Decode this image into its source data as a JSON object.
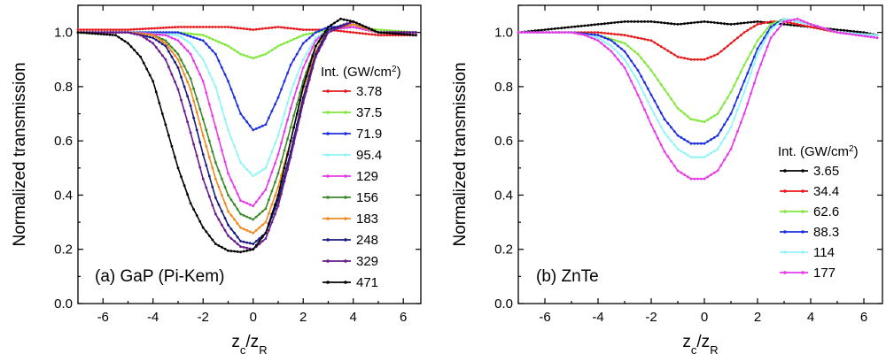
{
  "chart_data": [
    {
      "type": "line",
      "annotation": "(a) GaP (Pi-Kem)",
      "xlabel": "z_c/z_R",
      "ylabel": "Normalized transmission",
      "xlim": [
        -7,
        6.7
      ],
      "ylim": [
        0,
        1.1
      ],
      "xticks": [
        -6,
        -4,
        -2,
        0,
        2,
        4,
        6
      ],
      "yticks": [
        0.0,
        0.2,
        0.4,
        0.6,
        0.8,
        1.0
      ],
      "legend_title": "Int. (GW/cm2)",
      "legend_position": "right",
      "series": [
        {
          "name": "3.78",
          "color": "#e8191c",
          "x": [
            -7,
            -5,
            -3,
            -2,
            -1,
            0,
            1,
            2,
            3,
            4,
            5,
            6.5
          ],
          "y": [
            1.01,
            1.01,
            1.02,
            1.02,
            1.02,
            1.01,
            1.02,
            1.01,
            1.01,
            1.0,
            0.99,
            0.99
          ]
        },
        {
          "name": "37.5",
          "color": "#7fe83a",
          "x": [
            -7,
            -5,
            -3,
            -2,
            -1,
            -0.5,
            0,
            0.5,
            1,
            2,
            3,
            4,
            5,
            6.5
          ],
          "y": [
            1.0,
            1.0,
            1.0,
            0.99,
            0.95,
            0.92,
            0.905,
            0.92,
            0.95,
            0.99,
            1.01,
            1.02,
            1.01,
            1.0
          ]
        },
        {
          "name": "71.9",
          "color": "#1c2fe0",
          "x": [
            -7,
            -5,
            -3,
            -2,
            -1.5,
            -1,
            -0.5,
            0,
            0.5,
            1,
            1.5,
            2,
            2.5,
            3,
            4,
            5,
            6.5
          ],
          "y": [
            1.0,
            1.0,
            1.0,
            0.97,
            0.92,
            0.82,
            0.7,
            0.64,
            0.66,
            0.76,
            0.88,
            0.96,
            1.0,
            1.02,
            1.02,
            1.0,
            1.0
          ]
        },
        {
          "name": "95.4",
          "color": "#8ff5f7",
          "x": [
            -7,
            -5,
            -3,
            -2.5,
            -2,
            -1.5,
            -1,
            -0.5,
            0,
            0.5,
            1,
            1.5,
            2,
            2.5,
            3,
            4,
            5,
            6.5
          ],
          "y": [
            1.0,
            1.0,
            0.99,
            0.96,
            0.9,
            0.8,
            0.64,
            0.52,
            0.47,
            0.5,
            0.62,
            0.78,
            0.9,
            0.98,
            1.01,
            1.02,
            1.0,
            1.0
          ]
        },
        {
          "name": "129",
          "color": "#e838e8",
          "x": [
            -7,
            -5,
            -3.5,
            -3,
            -2.5,
            -2,
            -1.5,
            -1,
            -0.5,
            0,
            0.5,
            1,
            1.5,
            2,
            2.5,
            3,
            4,
            5,
            6.5
          ],
          "y": [
            1.0,
            1.0,
            0.99,
            0.97,
            0.92,
            0.82,
            0.65,
            0.48,
            0.38,
            0.36,
            0.42,
            0.55,
            0.72,
            0.87,
            0.97,
            1.01,
            1.02,
            1.0,
            1.0
          ]
        },
        {
          "name": "156",
          "color": "#3a8a2a",
          "x": [
            -7,
            -5,
            -4,
            -3.5,
            -3,
            -2.5,
            -2,
            -1.5,
            -1,
            -0.5,
            0,
            0.5,
            1,
            1.5,
            2,
            2.5,
            3,
            4,
            5,
            6.5
          ],
          "y": [
            1.0,
            1.0,
            0.99,
            0.97,
            0.92,
            0.83,
            0.68,
            0.52,
            0.4,
            0.33,
            0.31,
            0.35,
            0.48,
            0.65,
            0.82,
            0.95,
            1.01,
            1.03,
            1.0,
            1.0
          ]
        },
        {
          "name": "183",
          "color": "#f08a1f",
          "x": [
            -7,
            -5,
            -4,
            -3.5,
            -3,
            -2.5,
            -2,
            -1.5,
            -1,
            -0.5,
            0,
            0.5,
            1,
            1.5,
            2,
            2.5,
            3,
            4,
            5,
            6.5
          ],
          "y": [
            1.0,
            1.0,
            0.99,
            0.96,
            0.9,
            0.79,
            0.62,
            0.46,
            0.34,
            0.28,
            0.26,
            0.3,
            0.43,
            0.6,
            0.79,
            0.93,
            1.01,
            1.03,
            1.0,
            1.0
          ]
        },
        {
          "name": "248",
          "color": "#1a1a80",
          "x": [
            -7,
            -5,
            -4,
            -3.5,
            -3,
            -2.5,
            -2,
            -1.5,
            -1,
            -0.5,
            0,
            0.5,
            1,
            1.5,
            2,
            2.5,
            3,
            4,
            5,
            6.5
          ],
          "y": [
            1.0,
            1.0,
            0.98,
            0.95,
            0.87,
            0.73,
            0.55,
            0.39,
            0.29,
            0.23,
            0.22,
            0.26,
            0.38,
            0.56,
            0.76,
            0.92,
            1.01,
            1.04,
            1.0,
            1.0
          ]
        },
        {
          "name": "329",
          "color": "#6a1a8a",
          "x": [
            -7,
            -5,
            -4.5,
            -4,
            -3.5,
            -3,
            -2.5,
            -2,
            -1.5,
            -1,
            -0.5,
            0,
            0.5,
            1,
            1.5,
            2,
            2.5,
            3,
            4,
            5,
            6.5
          ],
          "y": [
            1.0,
            1.0,
            0.99,
            0.96,
            0.9,
            0.79,
            0.63,
            0.46,
            0.33,
            0.25,
            0.21,
            0.2,
            0.24,
            0.36,
            0.54,
            0.74,
            0.91,
            1.0,
            1.04,
            1.0,
            1.0
          ]
        },
        {
          "name": "471",
          "color": "#000000",
          "x": [
            -7,
            -5.5,
            -5,
            -4.5,
            -4,
            -3.5,
            -3,
            -2.5,
            -2,
            -1.5,
            -1,
            -0.5,
            0,
            0.5,
            1,
            1.5,
            2,
            2.5,
            3,
            3.5,
            4,
            5,
            6.5
          ],
          "y": [
            1.0,
            0.99,
            0.96,
            0.91,
            0.82,
            0.66,
            0.5,
            0.37,
            0.28,
            0.22,
            0.195,
            0.19,
            0.2,
            0.26,
            0.4,
            0.6,
            0.8,
            0.95,
            1.02,
            1.05,
            1.04,
            1.0,
            0.99
          ]
        }
      ]
    },
    {
      "type": "line",
      "annotation": "(b) ZnTe",
      "xlabel": "z_c/z_R",
      "ylabel": "Normalized transmission",
      "xlim": [
        -7,
        6.7
      ],
      "ylim": [
        0,
        1.1
      ],
      "xticks": [
        -6,
        -4,
        -2,
        0,
        2,
        4,
        6
      ],
      "yticks": [
        0.0,
        0.2,
        0.4,
        0.6,
        0.8,
        1.0
      ],
      "legend_title": "Int. (GW/cm2)",
      "legend_position": "bottom-right",
      "series": [
        {
          "name": "3.65",
          "color": "#000000",
          "x": [
            -7,
            -6,
            -5,
            -4,
            -3,
            -2,
            -1,
            0,
            1,
            2,
            3,
            4,
            5,
            6,
            6.5
          ],
          "y": [
            1.0,
            1.01,
            1.02,
            1.03,
            1.04,
            1.04,
            1.03,
            1.04,
            1.03,
            1.04,
            1.03,
            1.02,
            1.01,
            1.0,
            0.99
          ]
        },
        {
          "name": "34.4",
          "color": "#e8191c",
          "x": [
            -7,
            -5,
            -4,
            -3,
            -2,
            -1.5,
            -1,
            -0.5,
            0,
            0.5,
            1,
            1.5,
            2,
            2.5,
            3,
            4,
            5,
            6.5
          ],
          "y": [
            1.0,
            1.0,
            1.0,
            0.99,
            0.97,
            0.94,
            0.91,
            0.9,
            0.9,
            0.92,
            0.96,
            1.0,
            1.03,
            1.04,
            1.04,
            1.02,
            1.0,
            0.99
          ]
        },
        {
          "name": "62.6",
          "color": "#7fe83a",
          "x": [
            -7,
            -5,
            -4,
            -3,
            -2.5,
            -2,
            -1.5,
            -1,
            -0.5,
            0,
            0.5,
            1,
            1.5,
            2,
            2.5,
            3,
            4,
            5,
            6.5
          ],
          "y": [
            1.0,
            1.0,
            0.99,
            0.96,
            0.92,
            0.86,
            0.79,
            0.72,
            0.68,
            0.67,
            0.7,
            0.78,
            0.88,
            0.97,
            1.03,
            1.05,
            1.03,
            1.0,
            0.99
          ]
        },
        {
          "name": "88.3",
          "color": "#1c2fe0",
          "x": [
            -7,
            -5,
            -4,
            -3.5,
            -3,
            -2.5,
            -2,
            -1.5,
            -1,
            -0.5,
            0,
            0.5,
            1,
            1.5,
            2,
            2.5,
            3,
            4,
            5,
            6.5
          ],
          "y": [
            1.0,
            1.0,
            0.99,
            0.97,
            0.93,
            0.86,
            0.77,
            0.68,
            0.62,
            0.59,
            0.59,
            0.62,
            0.7,
            0.82,
            0.94,
            1.02,
            1.05,
            1.03,
            1.0,
            0.99
          ]
        },
        {
          "name": "114",
          "color": "#8ff5f7",
          "x": [
            -7,
            -5,
            -4,
            -3.5,
            -3,
            -2.5,
            -2,
            -1.5,
            -1,
            -0.5,
            0,
            0.5,
            1,
            1.5,
            2,
            2.5,
            3,
            4,
            5,
            6.5
          ],
          "y": [
            1.0,
            1.0,
            0.98,
            0.95,
            0.9,
            0.82,
            0.72,
            0.63,
            0.57,
            0.54,
            0.54,
            0.57,
            0.65,
            0.78,
            0.92,
            1.01,
            1.05,
            1.03,
            1.0,
            0.99
          ]
        },
        {
          "name": "177",
          "color": "#e838e8",
          "x": [
            -7,
            -5,
            -4.5,
            -4,
            -3.5,
            -3,
            -2.5,
            -2,
            -1.5,
            -1,
            -0.5,
            0,
            0.5,
            1,
            1.5,
            2,
            2.5,
            3,
            3.5,
            4,
            5,
            6.5
          ],
          "y": [
            1.0,
            1.0,
            0.99,
            0.97,
            0.93,
            0.87,
            0.77,
            0.66,
            0.56,
            0.49,
            0.46,
            0.46,
            0.49,
            0.57,
            0.7,
            0.85,
            0.98,
            1.04,
            1.05,
            1.03,
            1.0,
            0.98
          ]
        }
      ]
    }
  ]
}
